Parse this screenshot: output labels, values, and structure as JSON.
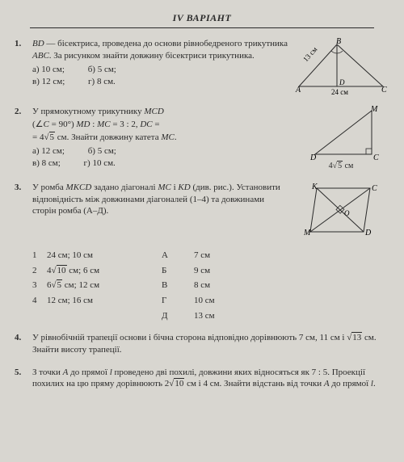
{
  "header": "IV ВАРІАНТ",
  "problems": [
    {
      "num": "1.",
      "body": "<em>BD</em> — бісектриса, проведена до основи рівнобедреного трикутника <em>ABC</em>. За рисунком знайти довжину бісектриси трикутника.",
      "opts_a": "а) 10 см;",
      "opts_b": "б) 5 см;",
      "opts_v": "в) 12 см;",
      "opts_g": "г) 8 см.",
      "fig": {
        "A": "A",
        "B": "B",
        "C": "C",
        "D": "D",
        "side_AB": "13 см",
        "base_AC": "24 см",
        "stroke": "#2a2a2a"
      }
    },
    {
      "num": "2.",
      "body_l1": "У   прямокутному   трикутнику   <em>MCD</em>",
      "body_l2": "(∠<em>C</em> = 90°)       <em>MD</em> : <em>MC</em> = 3 : 2,       <em>DC</em> =",
      "body_l3_pref": "= 4",
      "body_l3_rad": "5",
      "body_l3_suf": " см. Знайти довжину катета <em>MC</em>.",
      "opts_a": "а) 12 см;",
      "opts_b": "б) 5 см;",
      "opts_v": "в) 8 см;",
      "opts_g": "г) 10 см.",
      "fig": {
        "M": "M",
        "C": "C",
        "D": "D",
        "base_pref": "4",
        "base_rad": "5",
        "base_suf": " см",
        "stroke": "#2a2a2a"
      }
    },
    {
      "num": "3.",
      "body": "У ромба <em>MKCD</em> задано діагоналі <em>MC</em> і <em>KD</em> (див. рис.). Установити відповідність між довжинами діагоналей (1–4) та довжинами сторін ромба (А–Д).",
      "left_rows": [
        {
          "n": "1",
          "v": "24 см; 10 см"
        },
        {
          "n": "2",
          "v_pref": "4",
          "v_rad": "10",
          "v_suf": " см; 6 см"
        },
        {
          "n": "3",
          "v_pref": "6",
          "v_rad": "5",
          "v_suf": " см; 12 см"
        },
        {
          "n": "4",
          "v": "12 см; 16 см"
        }
      ],
      "right_rows": [
        {
          "l": "А",
          "v": "7 см"
        },
        {
          "l": "Б",
          "v": "9 см"
        },
        {
          "l": "В",
          "v": "8 см"
        },
        {
          "l": "Г",
          "v": "10 см"
        },
        {
          "l": "Д",
          "v": "13 см"
        }
      ],
      "fig": {
        "M": "M",
        "K": "K",
        "C": "C",
        "D": "D",
        "O": "O",
        "stroke": "#2a2a2a"
      }
    },
    {
      "num": "4.",
      "body_pref": "У рівнобічній трапеції основи і бічна сторона відповідно дорівнюють 7 см, 11 см і ",
      "body_rad": "13",
      "body_suf": " см. Знайти висоту трапеції."
    },
    {
      "num": "5.",
      "body_pref": "З точки <em>A</em> до прямої <em>l</em> проведено дві похилі, довжини яких відносяться як 7 : 5. Проекції похилих на цю пряму дорівнюють 2",
      "body_rad": "10",
      "body_suf": " см і 4 см. Знайти відстань від точки <em>A</em> до прямої <em>l</em>."
    }
  ]
}
